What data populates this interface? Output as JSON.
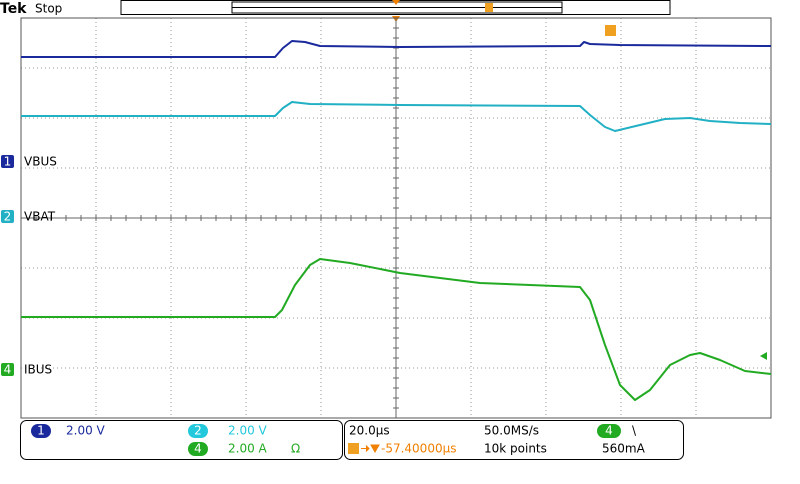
{
  "header": {
    "brand": "Tek",
    "status": "Stop"
  },
  "channels": [
    {
      "number": "1",
      "label": "VBUS"
    },
    {
      "number": "2",
      "label": "VBAT"
    },
    {
      "number": "4",
      "label": "IBUS"
    }
  ],
  "readout": {
    "ch1": {
      "number": "1",
      "scale": "2.00 V"
    },
    "ch2": {
      "number": "2",
      "scale": "2.00 V"
    },
    "ch4": {
      "number": "4",
      "scale": "2.00 A",
      "impedance": "Ω"
    },
    "timebase": "20.0µs",
    "sample_rate": "50.0MS/s",
    "trigger_position": "-57.40000µs",
    "record_length": "10k points",
    "trigger": {
      "channel": "4",
      "slope": "\\",
      "level": "560mA"
    }
  }
}
